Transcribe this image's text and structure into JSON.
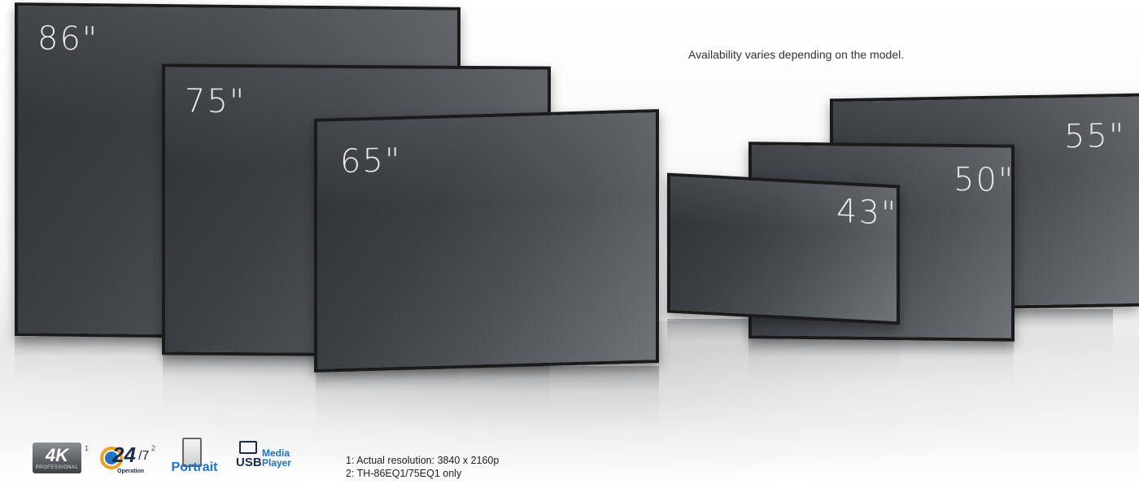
{
  "availability_note": "Availability varies depending on the model.",
  "displays": [
    {
      "id": "86",
      "label": "86\""
    },
    {
      "id": "75",
      "label": "75\""
    },
    {
      "id": "65",
      "label": "65\""
    },
    {
      "id": "55",
      "label": "55\""
    },
    {
      "id": "50",
      "label": "50\""
    },
    {
      "id": "43",
      "label": "43\""
    }
  ],
  "badges": {
    "k4": {
      "main": "4K",
      "sub": "PROFESSIONAL",
      "sup": "1"
    },
    "op247": {
      "main": "24",
      "slash": "/7",
      "sub": "Operation",
      "sup": "2"
    },
    "portrait": {
      "label": "Portrait"
    },
    "usb": {
      "label": "USB",
      "line1": "Media",
      "line2": "Player"
    }
  },
  "footnotes": [
    "1: Actual resolution: 3840 x 2160p",
    "2: TH-86EQ1/75EQ1 only"
  ],
  "colors": {
    "badge_blue": "#1e73c8",
    "bezel": "#1b1b1b",
    "screen": "#3b3e43"
  }
}
